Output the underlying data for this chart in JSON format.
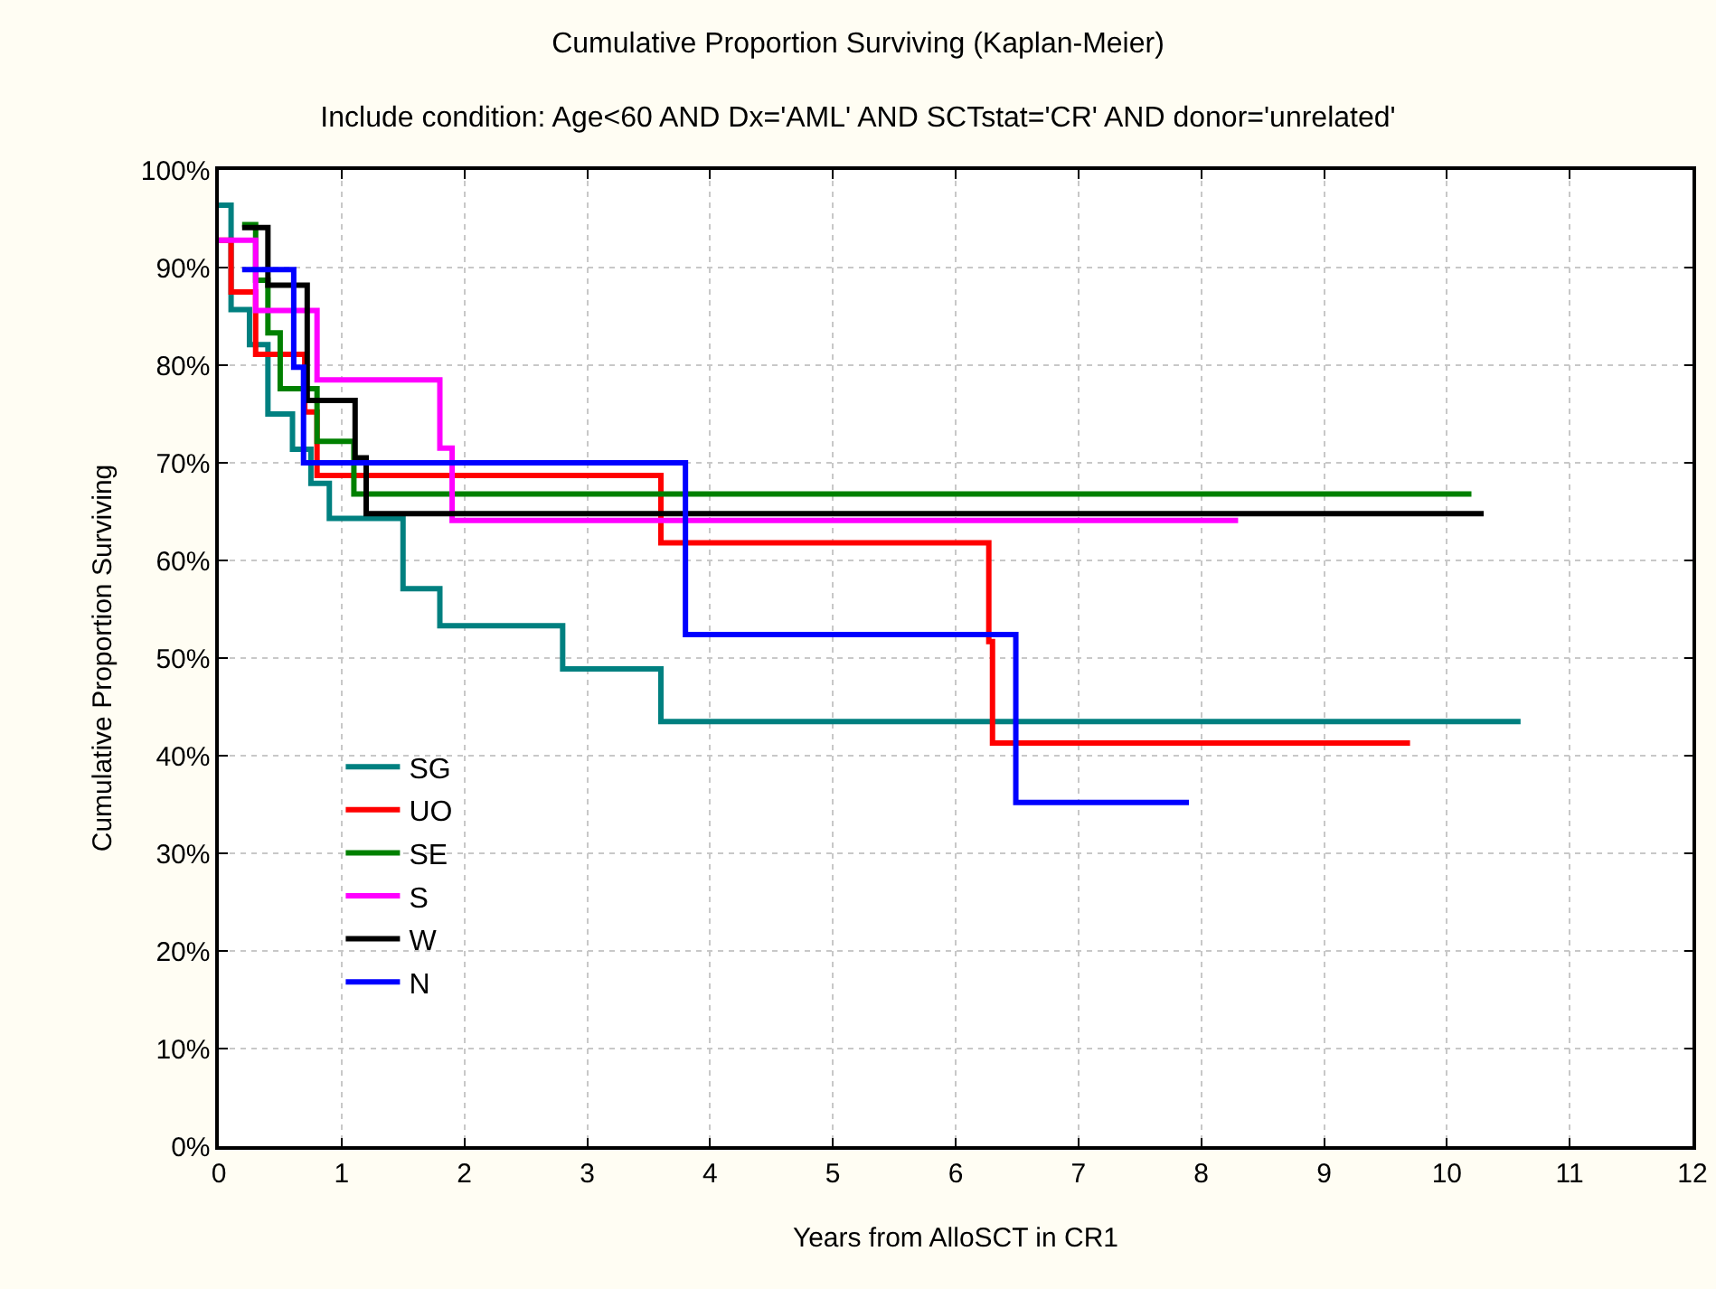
{
  "chart_data": {
    "type": "step",
    "title": "Cumulative Proportion Surviving (Kaplan-Meier)",
    "subtitle": "Include condition: Age<60 AND Dx='AML' AND SCTstat='CR' AND donor='unrelated'",
    "xlabel": "Years from AlloSCT in CR1",
    "ylabel": "Cumulative Proportion Surviving",
    "xlim": [
      0,
      12
    ],
    "xticks": [
      0,
      1,
      2,
      3,
      4,
      5,
      6,
      7,
      8,
      9,
      10,
      11,
      12
    ],
    "ylim": [
      0,
      100
    ],
    "yticks": [
      {
        "value": 0,
        "label": "0%"
      },
      {
        "value": 10,
        "label": "10%"
      },
      {
        "value": 20,
        "label": "20%"
      },
      {
        "value": 30,
        "label": "30%"
      },
      {
        "value": 40,
        "label": "40%"
      },
      {
        "value": 50,
        "label": "50%"
      },
      {
        "value": 60,
        "label": "60%"
      },
      {
        "value": 70,
        "label": "70%"
      },
      {
        "value": 80,
        "label": "80%"
      },
      {
        "value": 90,
        "label": "90%"
      },
      {
        "value": 100,
        "label": "100%"
      }
    ],
    "grid": true,
    "legend": "bottom left",
    "line_style": "solid",
    "marker": "none",
    "series": [
      {
        "name": "SG",
        "color": "#008080",
        "x": [
          0,
          0.1,
          0.25,
          0.4,
          0.6,
          0.75,
          0.9,
          1.5,
          1.8,
          2.8,
          3.6,
          10.6
        ],
        "values": [
          96.4,
          85.7,
          82.1,
          75,
          71.4,
          67.9,
          64.3,
          57.1,
          53.3,
          48.9,
          43.5,
          43.5
        ]
      },
      {
        "name": "UO",
        "color": "#ff0000",
        "x": [
          0,
          0.1,
          0.3,
          0.7,
          0.8,
          3.6,
          6.27,
          6.3,
          9.7
        ],
        "values": [
          92.8,
          87.5,
          81.1,
          75.2,
          68.7,
          61.8,
          51.7,
          41.3,
          41.3
        ]
      },
      {
        "name": "SE",
        "color": "#008000",
        "x": [
          0.19,
          0.3,
          0.4,
          0.5,
          0.8,
          1.1,
          10.2
        ],
        "values": [
          94.4,
          88.7,
          83.3,
          77.6,
          72.2,
          66.8,
          66.8
        ]
      },
      {
        "name": "S",
        "color": "#ff00ff",
        "x": [
          0,
          0.3,
          0.8,
          1.8,
          1.9,
          8.3
        ],
        "values": [
          92.8,
          85.6,
          78.5,
          71.5,
          64.1,
          64.1
        ]
      },
      {
        "name": "W",
        "color": "#000000",
        "x": [
          0.19,
          0.4,
          0.72,
          1.11,
          1.2,
          10.3
        ],
        "values": [
          94.1,
          88.2,
          76.4,
          70.5,
          64.8,
          64.8
        ]
      },
      {
        "name": "N",
        "color": "#0000ff",
        "x": [
          0.19,
          0.61,
          0.69,
          3.8,
          6.49,
          7.9
        ],
        "values": [
          89.8,
          79.8,
          70,
          52.4,
          35.2,
          35.2
        ]
      }
    ]
  }
}
